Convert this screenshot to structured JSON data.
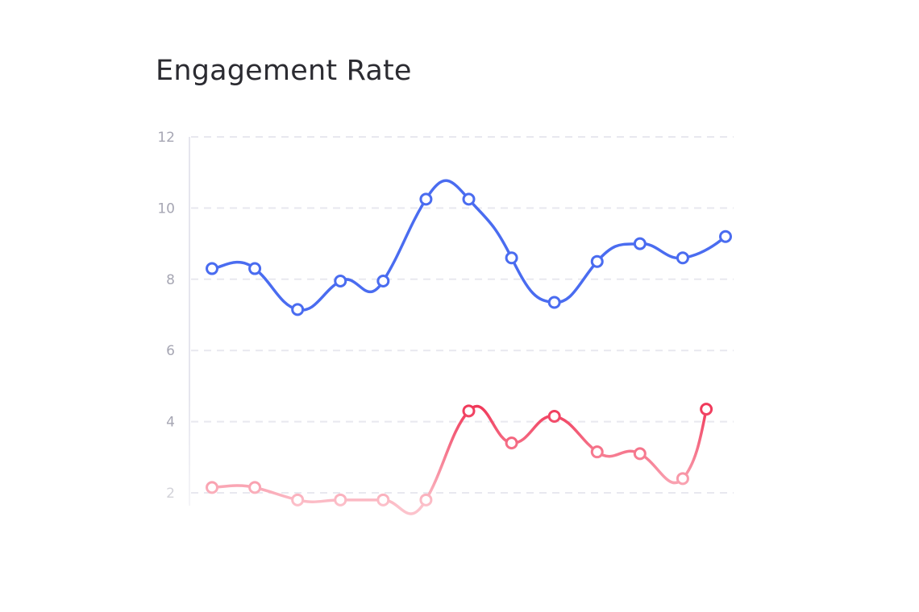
{
  "chart_data": {
    "type": "line",
    "title": "Engagement Rate",
    "xlabel": "",
    "ylabel": "",
    "ylim": [
      2,
      12
    ],
    "yticks": [
      2,
      4,
      6,
      8,
      10,
      12
    ],
    "grid": true,
    "x": [
      1,
      2,
      3,
      4,
      5,
      6,
      7,
      8,
      9,
      10,
      11,
      12,
      13
    ],
    "series": [
      {
        "color": "#4a6cf0",
        "x": [
          1,
          2,
          3,
          4,
          5,
          6,
          7,
          8,
          9,
          10,
          11,
          12,
          13
        ],
        "values": [
          8.3,
          8.3,
          7.15,
          7.95,
          7.95,
          10.25,
          10.25,
          8.6,
          7.35,
          8.5,
          9.0,
          8.6,
          9.2
        ]
      },
      {
        "color": "#f0395a",
        "x": [
          1,
          2,
          3,
          4,
          5,
          6,
          7,
          8,
          9,
          10,
          11,
          12,
          12.55
        ],
        "values": [
          2.15,
          2.15,
          1.8,
          1.8,
          1.8,
          1.8,
          4.3,
          3.4,
          4.15,
          3.15,
          3.1,
          2.4,
          4.35
        ]
      }
    ]
  }
}
